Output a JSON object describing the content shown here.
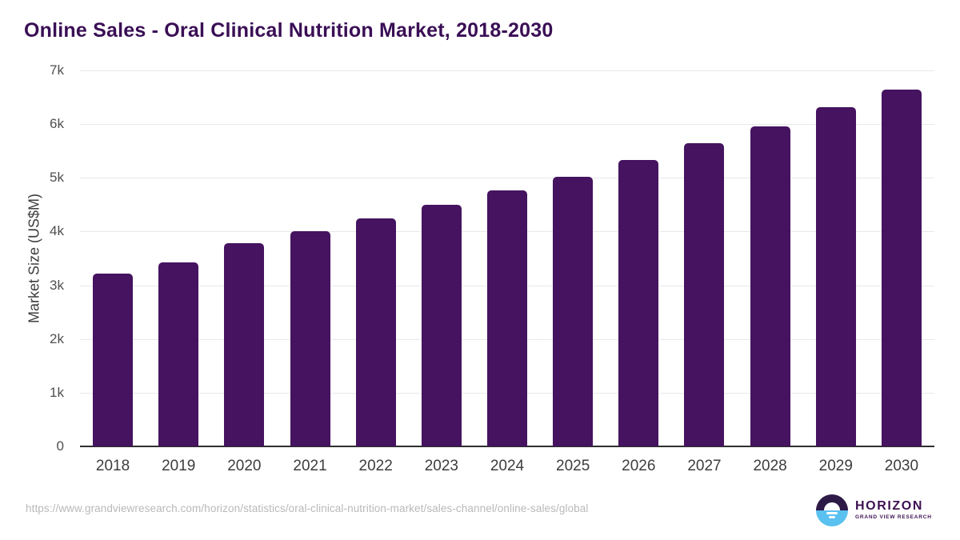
{
  "chart_data": {
    "type": "bar",
    "title": "Online Sales - Oral Clinical Nutrition Market, 2018-2030",
    "xlabel": "",
    "ylabel": "Market Size (US$M)",
    "categories": [
      "2018",
      "2019",
      "2020",
      "2021",
      "2022",
      "2023",
      "2024",
      "2025",
      "2026",
      "2027",
      "2028",
      "2029",
      "2030"
    ],
    "values": [
      3220,
      3430,
      3790,
      4010,
      4250,
      4500,
      4760,
      5020,
      5330,
      5640,
      5960,
      6310,
      6650
    ],
    "ylim": [
      0,
      7000
    ],
    "ytick_step": 1000,
    "ytick_labels": [
      "0",
      "1k",
      "2k",
      "3k",
      "4k",
      "5k",
      "6k",
      "7k"
    ],
    "grid": "horizontal",
    "legend": "none",
    "bar_color": "#45135f"
  },
  "colors": {
    "title": "#3a0f55",
    "bar": "#45135f",
    "gridline": "#e8e8e8",
    "axis_line": "#2f2f2f",
    "y_tick_label": "#4f4f4f",
    "x_tick_label": "#3d3d3d",
    "source_url": "#b9b9b9",
    "logo_purple": "#2e1a47",
    "logo_blue": "#5ac1f0",
    "logo_text": "#3d1152"
  },
  "footer": {
    "source_url": "https://www.grandviewresearch.com/horizon/statistics/oral-clinical-nutrition-market/sales-channel/online-sales/global",
    "logo": {
      "title": "HORIZON",
      "subtitle": "GRAND VIEW RESEARCH"
    }
  }
}
